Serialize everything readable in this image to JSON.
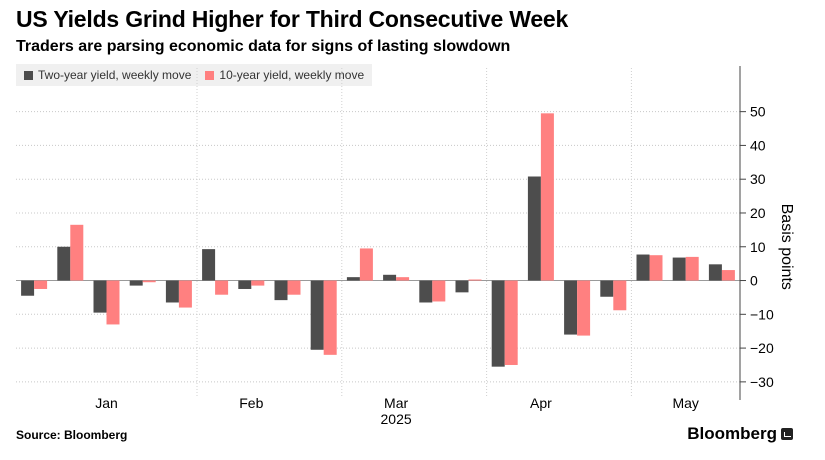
{
  "header": {
    "title": "US Yields Grind Higher for Third Consecutive Week",
    "subtitle": "Traders are parsing economic data for signs of lasting slowdown"
  },
  "footer": {
    "source": "Source: Bloomberg",
    "brand": "Bloomberg"
  },
  "colors": {
    "two_year": "#4d4d4d",
    "ten_year": "#ff8080",
    "grid": "#c8c8c8",
    "axis": "#444444",
    "legend_bg": "#f0f0f0"
  },
  "chart_data": {
    "type": "bar",
    "title": "US Yields Grind Higher for Third Consecutive Week",
    "subtitle": "Traders are parsing economic data for signs of lasting slowdown",
    "ylabel": "Basis points",
    "xlabel": "",
    "ylim": [
      -33,
      57
    ],
    "yticks": [
      -30,
      -20,
      -10,
      0,
      10,
      20,
      30,
      40,
      50
    ],
    "grid": true,
    "legend_position": "top-left",
    "year_label": "2025",
    "month_labels": [
      {
        "label": "Jan",
        "week": 2.5
      },
      {
        "label": "Feb",
        "week": 6.5
      },
      {
        "label": "Mar",
        "week": 10.5
      },
      {
        "label": "Apr",
        "week": 14.5
      },
      {
        "label": "May",
        "week": 18.5
      }
    ],
    "month_separators": [
      4.5,
      8.5,
      12.5,
      16.5
    ],
    "series": [
      {
        "name": "Two-year yield, weekly move",
        "color": "#4d4d4d",
        "values": [
          -4.5,
          10,
          -9.5,
          -1.5,
          -6.5,
          9.3,
          -2.5,
          -5.8,
          -20.5,
          1,
          1.7,
          -6.5,
          -3.5,
          -25.5,
          30.8,
          -16,
          -4.8,
          7.7,
          6.8,
          4.8
        ]
      },
      {
        "name": "10-year yield, weekly move",
        "color": "#ff8080",
        "values": [
          -2.5,
          16.5,
          -13,
          -0.5,
          -8,
          -4.2,
          -1.5,
          -4.2,
          -22,
          9.5,
          1,
          -6.2,
          0.3,
          -25,
          49.5,
          -16.3,
          -8.8,
          7.5,
          7,
          3.1
        ]
      }
    ]
  }
}
